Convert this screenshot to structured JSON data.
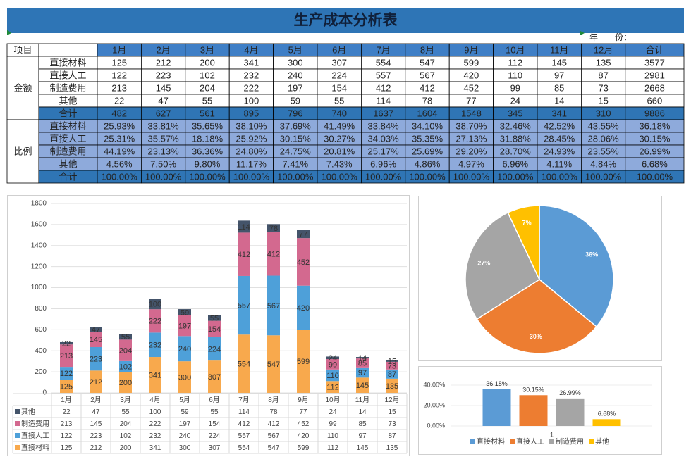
{
  "header": {
    "title": "生产成本分析表",
    "year_label": "年　　份："
  },
  "table": {
    "corner": "项目",
    "columns": [
      "1月",
      "2月",
      "3月",
      "4月",
      "5月",
      "6月",
      "7月",
      "8月",
      "9月",
      "10月",
      "11月",
      "12月",
      "合计"
    ],
    "groups": [
      {
        "label": "金额",
        "rows": [
          {
            "name": "直接材料",
            "values": [
              125,
              212,
              200,
              341,
              300,
              307,
              554,
              547,
              599,
              112,
              145,
              135,
              3577
            ]
          },
          {
            "name": "直接人工",
            "values": [
              122,
              223,
              102,
              232,
              240,
              224,
              557,
              567,
              420,
              110,
              97,
              87,
              2981
            ]
          },
          {
            "name": "制造费用",
            "values": [
              213,
              145,
              204,
              222,
              197,
              154,
              412,
              412,
              452,
              99,
              85,
              73,
              2668
            ]
          },
          {
            "name": "其他",
            "values": [
              22,
              47,
              55,
              100,
              59,
              55,
              114,
              78,
              77,
              24,
              14,
              15,
              660
            ]
          },
          {
            "name": "合计",
            "values": [
              482,
              627,
              561,
              895,
              796,
              740,
              1637,
              1604,
              1548,
              345,
              341,
              310,
              9886
            ]
          }
        ]
      },
      {
        "label": "比例",
        "rows": [
          {
            "name": "直接材料",
            "values": [
              "25.93%",
              "33.81%",
              "35.65%",
              "38.10%",
              "37.69%",
              "41.49%",
              "33.84%",
              "34.10%",
              "38.70%",
              "32.46%",
              "42.52%",
              "43.55%",
              "36.18%"
            ]
          },
          {
            "name": "直接人工",
            "values": [
              "25.31%",
              "35.57%",
              "18.18%",
              "25.92%",
              "30.15%",
              "30.27%",
              "34.03%",
              "35.35%",
              "27.13%",
              "31.88%",
              "28.45%",
              "28.06%",
              "30.15%"
            ]
          },
          {
            "name": "制造费用",
            "values": [
              "44.19%",
              "23.13%",
              "36.36%",
              "24.80%",
              "24.75%",
              "20.81%",
              "25.17%",
              "25.69%",
              "29.20%",
              "28.70%",
              "24.93%",
              "23.55%",
              "26.99%"
            ]
          },
          {
            "name": "其他",
            "values": [
              "4.56%",
              "7.50%",
              "9.80%",
              "11.17%",
              "7.41%",
              "7.43%",
              "6.96%",
              "4.86%",
              "4.97%",
              "6.96%",
              "4.11%",
              "4.84%",
              "6.68%"
            ]
          },
          {
            "name": "合计",
            "values": [
              "100.00%",
              "100.00%",
              "100.00%",
              "100.00%",
              "100.00%",
              "100.00%",
              "100.00%",
              "100.00%",
              "100.00%",
              "100.00%",
              "100.00%",
              "100.00%",
              "100.00%"
            ]
          }
        ]
      }
    ]
  },
  "chart_data": [
    {
      "type": "stacked_bar",
      "categories": [
        "1月",
        "2月",
        "3月",
        "4月",
        "5月",
        "6月",
        "7月",
        "8月",
        "9月",
        "10月",
        "11月",
        "12月"
      ],
      "series": [
        {
          "name": "直接材料",
          "color": "#f8a94d",
          "values": [
            125,
            212,
            200,
            341,
            300,
            307,
            554,
            547,
            599,
            112,
            145,
            135
          ]
        },
        {
          "name": "直接人工",
          "color": "#4ea0d9",
          "values": [
            122,
            223,
            102,
            232,
            240,
            224,
            557,
            567,
            420,
            110,
            97,
            87
          ]
        },
        {
          "name": "制造费用",
          "color": "#d3698f",
          "values": [
            213,
            145,
            204,
            222,
            197,
            154,
            412,
            412,
            452,
            99,
            85,
            73
          ]
        },
        {
          "name": "其他",
          "color": "#44546a",
          "values": [
            22,
            47,
            55,
            100,
            59,
            55,
            114,
            78,
            77,
            24,
            14,
            15
          ]
        }
      ],
      "ylim": [
        0,
        1800
      ],
      "yticks": [
        0,
        200,
        400,
        600,
        800,
        1000,
        1200,
        1400,
        1600,
        1800
      ],
      "grid": true
    },
    {
      "type": "pie",
      "values": [
        36,
        30,
        27,
        7
      ],
      "value_labels": [
        "36%",
        "30%",
        "27%",
        "7%"
      ],
      "colors": [
        "#5b9bd5",
        "#ed7d31",
        "#a5a5a5",
        "#ffc000"
      ]
    },
    {
      "type": "bar",
      "categories": [
        "1"
      ],
      "series": [
        {
          "name": "直接材料",
          "color": "#5b9bd5",
          "values": [
            36.18
          ],
          "value_labels": [
            "36.18%"
          ]
        },
        {
          "name": "直接人工",
          "color": "#ed7d31",
          "values": [
            30.15
          ],
          "value_labels": [
            "30.15%"
          ]
        },
        {
          "name": "制造费用",
          "color": "#a5a5a5",
          "values": [
            26.99
          ],
          "value_labels": [
            "26.99%"
          ]
        },
        {
          "name": "其他",
          "color": "#ffc000",
          "values": [
            6.68
          ],
          "value_labels": [
            "6.68%"
          ]
        }
      ],
      "ylim": [
        0,
        40
      ],
      "yticks": [
        {
          "value": 0,
          "label": "0.00%"
        },
        {
          "value": 20,
          "label": "20.00%"
        },
        {
          "value": 40,
          "label": "40.00%"
        }
      ],
      "grid": true
    }
  ]
}
